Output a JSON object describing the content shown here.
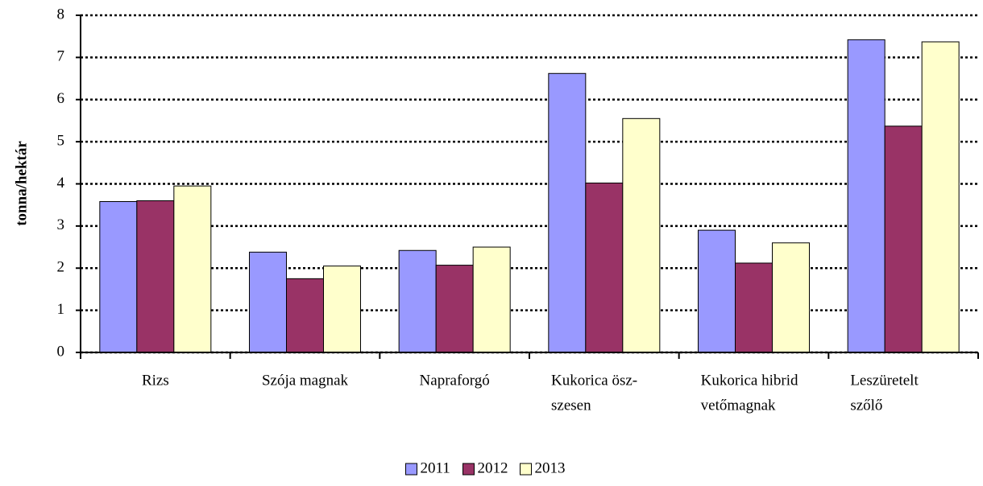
{
  "chart_data": {
    "type": "bar",
    "y_label": "tonna/hektár",
    "categories": [
      [
        "Rizs"
      ],
      [
        "Szója magnak"
      ],
      [
        "Napraforgó"
      ],
      [
        "Kukorica ösz-",
        "szesen"
      ],
      [
        "Kukorica hibrid",
        "vetőmagnak"
      ],
      [
        "Leszüretelt",
        "szőlő"
      ]
    ],
    "series": [
      {
        "name": "2011",
        "color": "#9999ff",
        "values": [
          3.58,
          2.38,
          2.42,
          6.62,
          2.9,
          7.42
        ]
      },
      {
        "name": "2012",
        "color": "#993366",
        "values": [
          3.6,
          1.75,
          2.07,
          4.02,
          2.12,
          5.37
        ]
      },
      {
        "name": "2013",
        "color": "#ffffcc",
        "values": [
          3.95,
          2.05,
          2.5,
          5.55,
          2.6,
          7.37
        ]
      }
    ],
    "ylim": [
      0,
      8
    ],
    "yticks": [
      0,
      1,
      2,
      3,
      4,
      5,
      6,
      7,
      8
    ],
    "grid": true,
    "legend": "bottom"
  }
}
